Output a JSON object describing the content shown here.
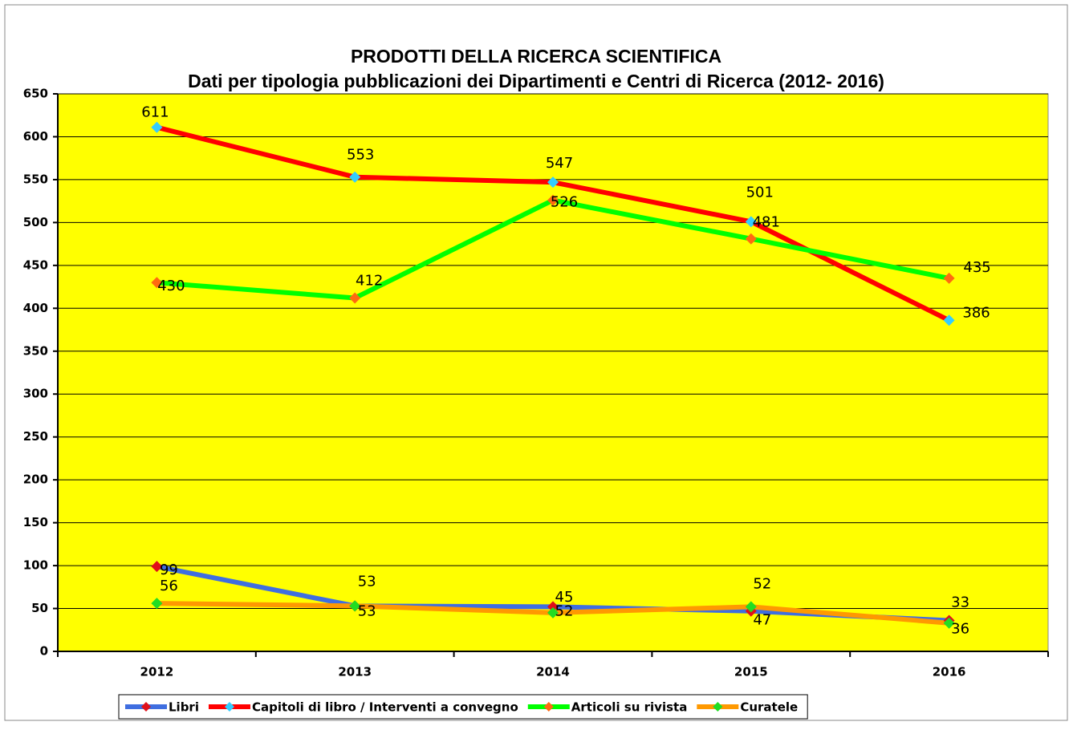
{
  "chart_data": {
    "type": "line",
    "title": "PRODOTTI DELLA RICERCA SCIENTIFICA",
    "subtitle": "Dati per tipologia pubblicazioni dei Dipartimenti e Centri di Ricerca  (2012- 2016)",
    "categories": [
      "2012",
      "2013",
      "2014",
      "2015",
      "2016"
    ],
    "series": [
      {
        "name": "Libri",
        "color": "#3f6ee0",
        "marker_color": "#e0101a",
        "values": [
          99,
          53,
          52,
          47,
          36
        ]
      },
      {
        "name": "Capitoli di libro / Interventi a convegno",
        "color": "#ff0000",
        "marker_color": "#33ccff",
        "values": [
          611,
          553,
          547,
          501,
          386
        ]
      },
      {
        "name": "Articoli su rivista",
        "color": "#00ff00",
        "marker_color": "#ff6a10",
        "values": [
          430,
          412,
          526,
          481,
          435
        ]
      },
      {
        "name": "Curatele",
        "color": "#ff9900",
        "marker_color": "#22dd22",
        "values": [
          56,
          53,
          45,
          52,
          33
        ]
      }
    ],
    "ylim": [
      0,
      650
    ],
    "yticks": [
      0,
      50,
      100,
      150,
      200,
      250,
      300,
      350,
      400,
      450,
      500,
      550,
      600,
      650
    ],
    "grid": true,
    "legend": "bottom",
    "background": "#ffff00"
  }
}
